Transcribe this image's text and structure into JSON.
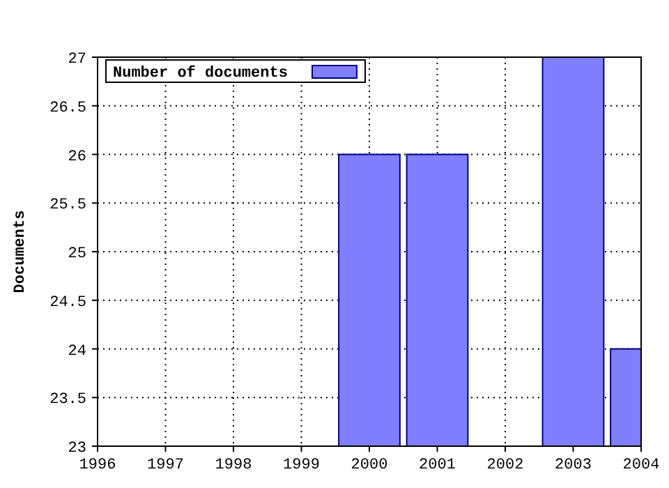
{
  "chart_data": {
    "type": "bar",
    "ylabel": "Documents",
    "x": [
      2000,
      2001,
      2003,
      2004
    ],
    "series": [
      {
        "name": "Number of documents",
        "color": "#7f7fff",
        "values": [
          26,
          26,
          27,
          24
        ]
      }
    ],
    "xlim": [
      1996,
      2004
    ],
    "xticks": [
      1996,
      1997,
      1998,
      1999,
      2000,
      2001,
      2002,
      2003,
      2004
    ],
    "ylim": [
      23,
      27
    ],
    "yticks": [
      23,
      23.5,
      24,
      24.5,
      25,
      25.5,
      26,
      26.5,
      27
    ],
    "grid": true,
    "legend": "top left"
  }
}
